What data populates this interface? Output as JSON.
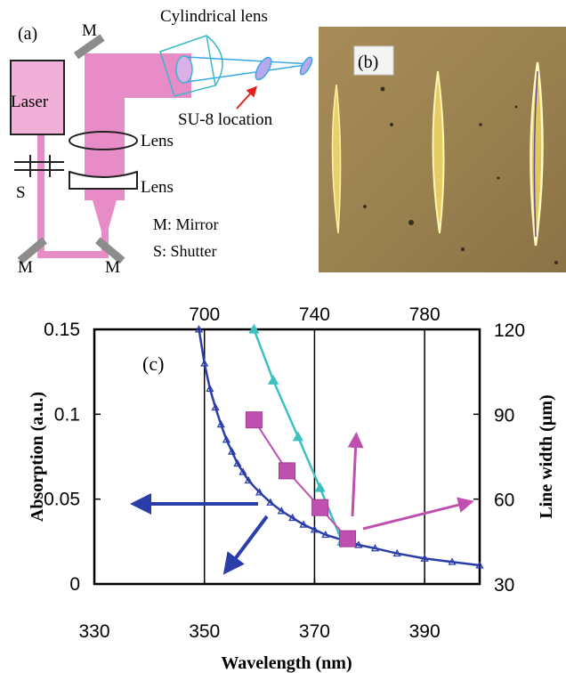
{
  "panel_a": {
    "label": "(a)",
    "laser": "Laser",
    "mirror_short": "M",
    "shutter_short": "S",
    "cylindrical_lens": "Cylindrical lens",
    "lens": "Lens",
    "su8_location": "SU-8 location",
    "legend_mirror": "M: Mirror",
    "legend_shutter": "S: Shutter"
  },
  "panel_b": {
    "label": "(b)"
  },
  "panel_c": {
    "label": "(c)"
  },
  "colors": {
    "beam": "#e88cc8",
    "absorption": "#2b3da8",
    "linewidth_cyan": "#3cc0c0",
    "linewidth_magenta": "#c050b0",
    "photo_bg": "#9a8250"
  },
  "chart_data": {
    "type": "scatter",
    "xlabel": "Wavelength (nm)",
    "ylabel_left": "Absorption (a.u.)",
    "ylabel_right": "Line width (µm)",
    "x_bottom": {
      "ticks": [
        "330",
        "350",
        "370",
        "390"
      ],
      "tick_values": [
        330,
        350,
        370,
        390
      ],
      "range": [
        330,
        400
      ]
    },
    "x_top": {
      "ticks": [
        "700",
        "740",
        "780"
      ],
      "tick_values": [
        700,
        740,
        780
      ],
      "range": [
        660,
        800
      ]
    },
    "y_left": {
      "ticks": [
        "0",
        "0.05",
        "0.1",
        "0.15"
      ],
      "tick_values": [
        0,
        0.05,
        0.1,
        0.15
      ],
      "range": [
        0,
        0.15
      ]
    },
    "y_right": {
      "ticks": [
        "30",
        "60",
        "90",
        "120"
      ],
      "tick_values": [
        30,
        60,
        90,
        120
      ],
      "range": [
        30,
        120
      ]
    },
    "grid_x": [
      350,
      370,
      390
    ],
    "series": [
      {
        "axis": "left-bottom",
        "marker": "triangle",
        "color": "#2b3da8",
        "x": [
          349,
          350,
          351,
          352,
          353,
          354,
          355,
          356,
          357,
          358,
          360,
          362,
          364,
          366,
          368,
          370,
          372,
          375,
          378,
          381,
          385,
          390,
          395,
          400
        ],
        "y": [
          0.15,
          0.13,
          0.115,
          0.104,
          0.094,
          0.085,
          0.078,
          0.071,
          0.066,
          0.061,
          0.054,
          0.048,
          0.043,
          0.039,
          0.035,
          0.032,
          0.029,
          0.026,
          0.023,
          0.021,
          0.018,
          0.015,
          0.013,
          0.011
        ]
      },
      {
        "axis": "right-top",
        "marker": "triangle",
        "color": "#3cc0c0",
        "x": [
          718,
          725,
          734,
          742,
          750
        ],
        "y": [
          120,
          102,
          82,
          64,
          45
        ]
      },
      {
        "axis": "right-top",
        "marker": "square",
        "color": "#c050b0",
        "x": [
          718,
          730,
          742,
          752
        ],
        "y": [
          88,
          70,
          57,
          46
        ]
      }
    ]
  }
}
